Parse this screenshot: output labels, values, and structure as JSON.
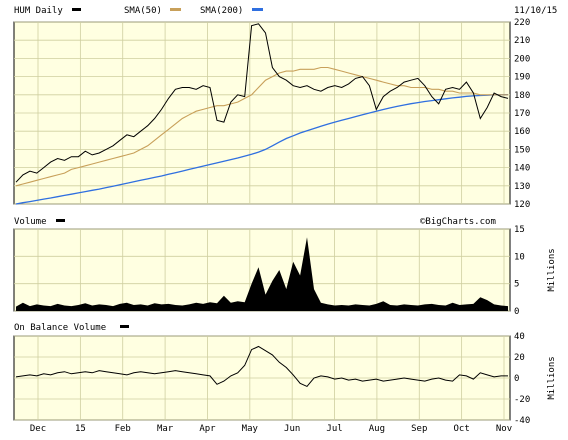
{
  "header": {
    "ticker_label": "HUM Daily",
    "sma50_label": "SMA(50)",
    "sma200_label": "SMA(200)",
    "date": "11/10/15"
  },
  "watermark": "©BigCharts.com",
  "panels": {
    "volume_label": "Volume",
    "volume_unit": "Millions",
    "obv_label": "On Balance Volume",
    "obv_unit": "Millions"
  },
  "colors": {
    "price": "#000000",
    "sma50": "#c8a05a",
    "sma200": "#2f6fe0",
    "panel_bg": "#ffffe1",
    "grid": "#cfcfa0",
    "volume": "#000000"
  },
  "chart_data": [
    {
      "type": "line",
      "title": "HUM Daily",
      "x_tick_labels": [
        "Dec",
        "15",
        "Feb",
        "Mar",
        "Apr",
        "May",
        "Jun",
        "Jul",
        "Aug",
        "Sep",
        "Oct",
        "Nov"
      ],
      "y_ticks": [
        120,
        130,
        140,
        150,
        160,
        170,
        180,
        190,
        200,
        210,
        220
      ],
      "ylim": [
        120,
        220
      ],
      "grid": true,
      "series": [
        {
          "name": "HUM Daily",
          "values": [
            132,
            136,
            138,
            137,
            140,
            143,
            145,
            144,
            146,
            146,
            149,
            147,
            148,
            150,
            152,
            155,
            158,
            157,
            160,
            163,
            167,
            172,
            178,
            183,
            184,
            184,
            183,
            185,
            184,
            166,
            165,
            176,
            180,
            179,
            218,
            219,
            214,
            195,
            190,
            188,
            185,
            184,
            185,
            183,
            182,
            184,
            185,
            184,
            186,
            189,
            190,
            185,
            172,
            179,
            182,
            184,
            187,
            188,
            189,
            185,
            179,
            175,
            183,
            184,
            183,
            187,
            181,
            167,
            173,
            181,
            179,
            178
          ]
        },
        {
          "name": "SMA(50)",
          "values": [
            130,
            131,
            132,
            133,
            134,
            135,
            136,
            137,
            139,
            140,
            141,
            142,
            143,
            144,
            145,
            146,
            147,
            148,
            150,
            152,
            155,
            158,
            161,
            164,
            167,
            169,
            171,
            172,
            173,
            174,
            174,
            175,
            176,
            178,
            180,
            184,
            188,
            190,
            192,
            193,
            193,
            194,
            194,
            194,
            195,
            195,
            194,
            193,
            192,
            191,
            190,
            189,
            188,
            187,
            186,
            185,
            185,
            184,
            184,
            184,
            183,
            183,
            182,
            182,
            181,
            181,
            181,
            180,
            180,
            180,
            180,
            180
          ]
        },
        {
          "name": "SMA(200)",
          "values": [
            120,
            120.7,
            121.3,
            122,
            122.7,
            123.3,
            124,
            124.7,
            125.4,
            126.1,
            126.8,
            127.5,
            128.2,
            129,
            129.8,
            130.6,
            131.4,
            132.2,
            133,
            133.8,
            134.6,
            135.4,
            136.3,
            137.2,
            138.1,
            139,
            139.9,
            140.8,
            141.7,
            142.6,
            143.5,
            144.4,
            145.3,
            146.3,
            147.3,
            148.5,
            150,
            152,
            154,
            156,
            157.5,
            159,
            160.3,
            161.5,
            162.7,
            163.9,
            165,
            166,
            167,
            168,
            169,
            170,
            171,
            171.9,
            172.8,
            173.6,
            174.4,
            175.1,
            175.7,
            176.3,
            176.8,
            177.3,
            177.8,
            178.3,
            178.7,
            179.1,
            179.4,
            179.6,
            179.8,
            180,
            180,
            180.1
          ]
        }
      ]
    },
    {
      "type": "area",
      "title": "Volume",
      "ylabel": "Millions",
      "y_ticks": [
        0,
        5,
        10,
        15
      ],
      "ylim": [
        0,
        15
      ],
      "values": [
        0.8,
        1.5,
        0.9,
        1.2,
        1.0,
        0.9,
        1.3,
        1.0,
        0.9,
        1.1,
        1.4,
        1.0,
        1.2,
        1.1,
        0.9,
        1.3,
        1.5,
        1.1,
        1.2,
        1.0,
        1.4,
        1.2,
        1.3,
        1.1,
        1.0,
        1.2,
        1.5,
        1.3,
        1.6,
        1.4,
        2.8,
        1.5,
        1.8,
        1.6,
        5.0,
        8.0,
        3.0,
        5.5,
        7.5,
        4.0,
        9.0,
        6.5,
        13.5,
        4.0,
        1.5,
        1.2,
        1.0,
        1.1,
        1.0,
        1.2,
        1.1,
        1.0,
        1.3,
        1.8,
        1.1,
        1.0,
        1.2,
        1.1,
        1.0,
        1.2,
        1.3,
        1.1,
        1.0,
        1.5,
        1.1,
        1.2,
        1.3,
        2.5,
        2.0,
        1.2,
        1.0,
        0.9
      ]
    },
    {
      "type": "line",
      "title": "On Balance Volume",
      "ylabel": "Millions",
      "y_ticks": [
        -40,
        -20,
        0,
        20,
        40
      ],
      "ylim": [
        -40,
        40
      ],
      "values": [
        1,
        2,
        3,
        2,
        4,
        3,
        5,
        6,
        4,
        5,
        6,
        5,
        7,
        6,
        5,
        4,
        3,
        5,
        6,
        5,
        4,
        5,
        6,
        7,
        6,
        5,
        4,
        3,
        2,
        -6,
        -3,
        2,
        5,
        12,
        27,
        30,
        26,
        22,
        15,
        10,
        3,
        -5,
        -8,
        0,
        2,
        1,
        -1,
        0,
        -2,
        -1,
        -3,
        -2,
        -1,
        -3,
        -2,
        -1,
        0,
        -1,
        -2,
        -3,
        -1,
        0,
        -2,
        -3,
        3,
        2,
        -1,
        5,
        3,
        1,
        2,
        2
      ]
    }
  ]
}
